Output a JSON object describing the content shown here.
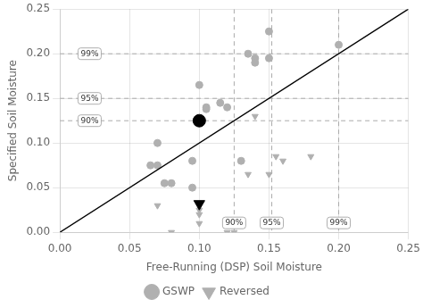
{
  "chart_data": {
    "type": "scatter",
    "title": "",
    "xlabel": "Free-Running (DSP) Soil Moisture",
    "ylabel": "Specified Soil Moisture",
    "xlim": [
      0,
      0.25
    ],
    "ylim": [
      0,
      0.25
    ],
    "xticks": [
      {
        "value": 0,
        "label": "0.00"
      },
      {
        "value": 0.05,
        "label": "0.05"
      },
      {
        "value": 0.1,
        "label": "0.10"
      },
      {
        "value": 0.15,
        "label": "0.15"
      },
      {
        "value": 0.2,
        "label": "0.20"
      },
      {
        "value": 0.25,
        "label": "0.25"
      }
    ],
    "yticks": [
      {
        "value": 0,
        "label": "0.00"
      },
      {
        "value": 0.05,
        "label": "0.05"
      },
      {
        "value": 0.1,
        "label": "0.10"
      },
      {
        "value": 0.15,
        "label": "0.15"
      },
      {
        "value": 0.2,
        "label": "0.20"
      },
      {
        "value": 0.25,
        "label": "0.25"
      }
    ],
    "grid": true,
    "legend": "bottom",
    "background_color": "#ffffff",
    "series": [
      {
        "name": "GSWP",
        "color": "#b0b0b0",
        "marker": "circle",
        "x": [
          0.065,
          0.07,
          0.07,
          0.075,
          0.08,
          0.095,
          0.095,
          0.1,
          0.105,
          0.105,
          0.115,
          0.12,
          0.13,
          0.135,
          0.14,
          0.14,
          0.15,
          0.15,
          0.2
        ],
        "values": [
          0.075,
          0.075,
          0.1,
          0.055,
          0.055,
          0.08,
          0.05,
          0.165,
          0.14,
          0.138,
          0.145,
          0.14,
          0.08,
          0.2,
          0.195,
          0.19,
          0.225,
          0.195,
          0.21
        ]
      },
      {
        "name": "Reversed",
        "color": "#b0b0b0",
        "marker": "triangle_down",
        "x": [
          0.07,
          0.08,
          0.1,
          0.1,
          0.1,
          0.12,
          0.125,
          0.135,
          0.14,
          0.15,
          0.155,
          0.16,
          0.18
        ],
        "values": [
          0.03,
          0.0,
          0.01,
          0.02,
          0.025,
          0.0,
          0.0,
          0.065,
          0.13,
          0.065,
          0.085,
          0.08,
          0.085
        ]
      }
    ],
    "means": [
      {
        "x": 0.1,
        "y": 0.125,
        "color": "#000000",
        "marker": "circle"
      },
      {
        "x": 0.1,
        "y": 0.032,
        "color": "#000000",
        "marker": "triangle_down"
      }
    ],
    "diagonal": {
      "x": [
        0,
        0.25
      ],
      "values": [
        0,
        0.25
      ],
      "color": "#000000"
    },
    "reference_lines": {
      "y": [
        0.125,
        0.15,
        0.2
      ],
      "x": [
        0.125,
        0.152,
        0.2
      ],
      "color": "#aaaaaa",
      "line_style": "dashed"
    },
    "y_line_labels": [
      {
        "text": "99%",
        "x": 0.013,
        "y": 0.2
      },
      {
        "text": "95%",
        "x": 0.013,
        "y": 0.15
      },
      {
        "text": "90%",
        "x": 0.013,
        "y": 0.125
      }
    ],
    "x_line_labels": [
      {
        "text": "90%",
        "x": 0.125,
        "y": 0.004
      },
      {
        "text": "95%",
        "x": 0.152,
        "y": 0.004
      },
      {
        "text": "99%",
        "x": 0.2,
        "y": 0.004
      }
    ]
  }
}
